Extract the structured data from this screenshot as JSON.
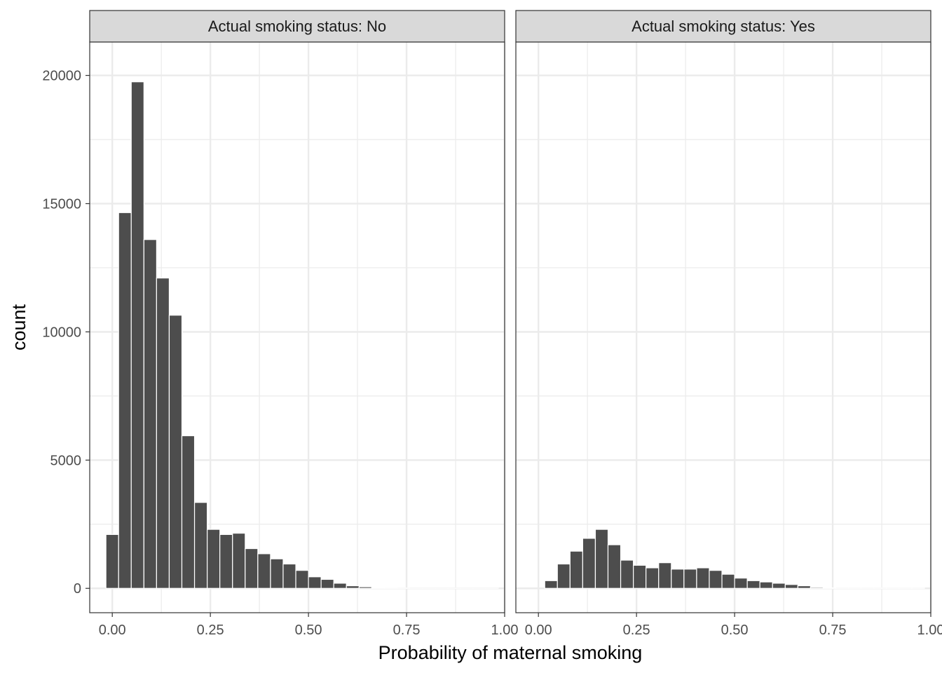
{
  "chart_data": {
    "type": "bar",
    "xlabel": "Probability of maternal smoking",
    "ylabel": "count",
    "xlim": [
      -0.0575,
      1.0
    ],
    "ylim": [
      -950,
      21300
    ],
    "x_ticks": [
      0.0,
      0.25,
      0.5,
      0.75,
      1.0
    ],
    "x_tick_labels": [
      "0.00",
      "0.25",
      "0.50",
      "0.75",
      "1.00"
    ],
    "y_ticks": [
      0,
      5000,
      10000,
      15000,
      20000
    ],
    "y_tick_labels": [
      "0",
      "5000",
      "10000",
      "15000",
      "20000"
    ],
    "bin_width": 0.0323,
    "grid": true,
    "bar_color": "#4d4d4d",
    "strip_fill": "#d9d9d9",
    "panels": [
      {
        "label": "Actual smoking status: No",
        "bins": [
          0.0,
          0.0323,
          0.0645,
          0.0968,
          0.129,
          0.1613,
          0.1935,
          0.2258,
          0.2581,
          0.2903,
          0.3226,
          0.3548,
          0.3871,
          0.4194,
          0.4516,
          0.4839,
          0.5161,
          0.5484,
          0.5806,
          0.6129,
          0.6452,
          0.6774,
          0.7097,
          0.7419,
          0.7742,
          0.8065,
          0.8387,
          0.871,
          0.9032,
          0.9355,
          0.9677
        ],
        "values": [
          2100,
          14650,
          19750,
          13600,
          12100,
          10650,
          5950,
          3350,
          2300,
          2100,
          2150,
          1550,
          1350,
          1150,
          950,
          700,
          450,
          350,
          200,
          100,
          60,
          30,
          15,
          10,
          5,
          5,
          5,
          5,
          5,
          5,
          5
        ]
      },
      {
        "label": "Actual smoking status: Yes",
        "bins": [
          0.0,
          0.0323,
          0.0645,
          0.0968,
          0.129,
          0.1613,
          0.1935,
          0.2258,
          0.2581,
          0.2903,
          0.3226,
          0.3548,
          0.3871,
          0.4194,
          0.4516,
          0.4839,
          0.5161,
          0.5484,
          0.5806,
          0.6129,
          0.6452,
          0.6774,
          0.7097,
          0.7419,
          0.7742,
          0.8065,
          0.8387,
          0.871,
          0.9032,
          0.9355,
          0.9677
        ],
        "values": [
          0,
          300,
          950,
          1450,
          1950,
          2300,
          1700,
          1100,
          900,
          800,
          1000,
          750,
          750,
          800,
          700,
          550,
          400,
          300,
          250,
          200,
          150,
          100,
          40,
          20,
          10,
          10,
          10,
          10,
          10,
          10,
          10
        ]
      }
    ]
  }
}
